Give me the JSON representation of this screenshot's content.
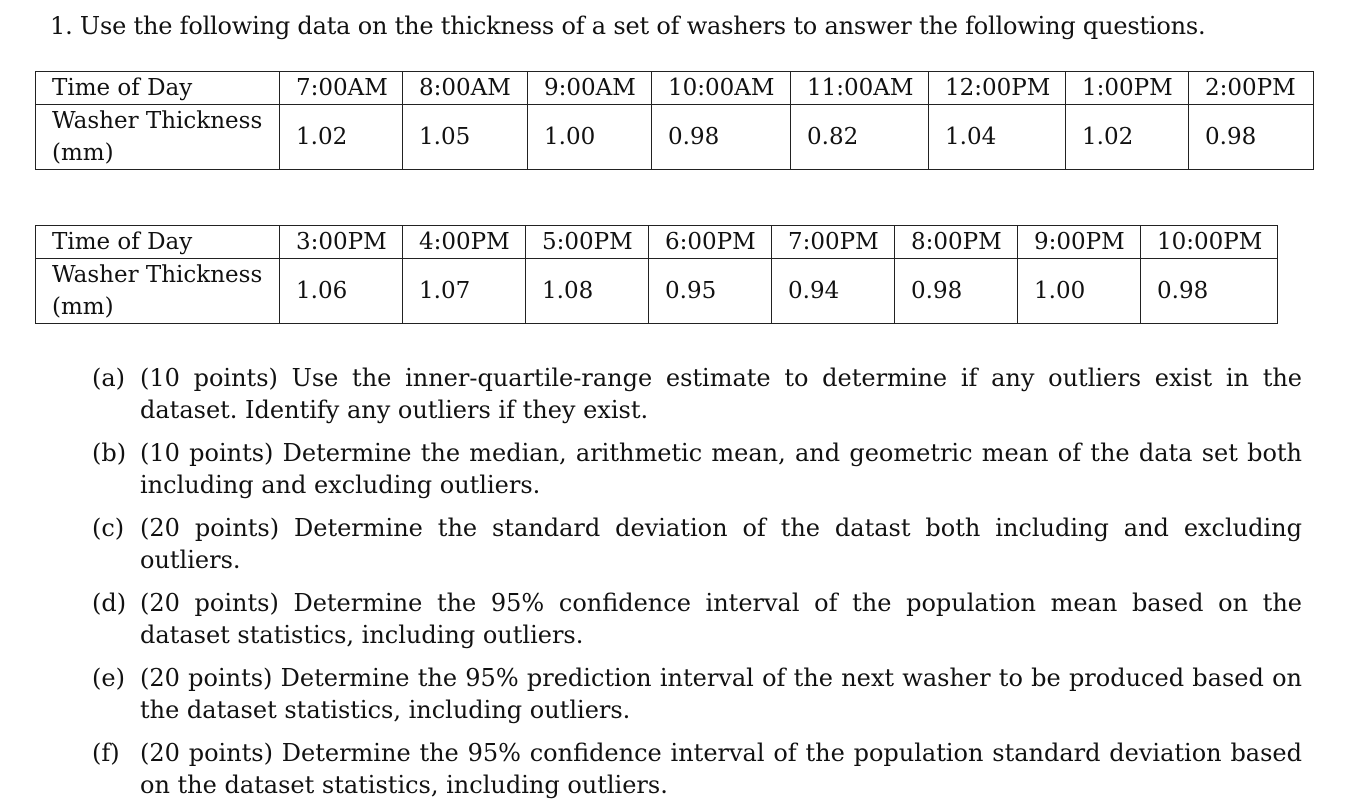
{
  "question": {
    "text": "1. Use the following data on the thickness of a set of washers to answer the following questions."
  },
  "tables": [
    {
      "row_header_time": "Time of Day",
      "row_header_thickness": "Washer Thickness (mm)",
      "times": [
        "7:00AM",
        "8:00AM",
        "9:00AM",
        "10:00AM",
        "11:00AM",
        "12:00PM",
        "1:00PM",
        "2:00PM"
      ],
      "values": [
        "1.02",
        "1.05",
        "1.00",
        "0.98",
        "0.82",
        "1.04",
        "1.02",
        "0.98"
      ]
    },
    {
      "row_header_time": "Time of Day",
      "row_header_thickness": "Washer Thickness (mm)",
      "times": [
        "3:00PM",
        "4:00PM",
        "5:00PM",
        "6:00PM",
        "7:00PM",
        "8:00PM",
        "9:00PM",
        "10:00PM"
      ],
      "values": [
        "1.06",
        "1.07",
        "1.08",
        "0.95",
        "0.94",
        "0.98",
        "1.00",
        "0.98"
      ]
    }
  ],
  "parts": [
    {
      "tag": "(a)",
      "text": "(10 points) Use the inner-quartile-range estimate to determine if any outliers exist in the dataset. Identify any outliers if they exist."
    },
    {
      "tag": "(b)",
      "text": "(10 points) Determine the median, arithmetic mean, and geometric mean of the data set both including and excluding outliers."
    },
    {
      "tag": "(c)",
      "text": "(20 points) Determine the standard deviation of the datast both including and excluding outliers."
    },
    {
      "tag": "(d)",
      "text": "(20 points) Determine the 95% confidence interval of the population mean based on the dataset statistics, including outliers."
    },
    {
      "tag": "(e)",
      "text": "(20 points) Determine the 95% prediction interval of the next washer to be produced based on the dataset statistics, including outliers."
    },
    {
      "tag": "(f)",
      "text": "(20 points) Determine the 95% confidence interval of the population standard deviation based on the dataset statistics, including outliers."
    }
  ]
}
